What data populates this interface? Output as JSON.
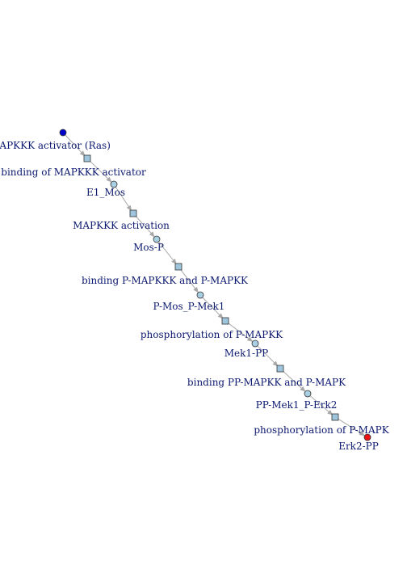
{
  "diagram": {
    "colors": {
      "source_node": "#0000cc",
      "intermediate_node": "#a9cfe3",
      "target_node": "#ee1111",
      "reaction_node": "#9ec5dc",
      "edge": "#a8a8a8",
      "label_text": "#0c1970"
    },
    "nodes": [
      {
        "id": "ras",
        "kind": "species",
        "role": "source",
        "label": "MAPKKK activator (Ras)"
      },
      {
        "id": "r1",
        "kind": "reaction",
        "label": "binding of MAPKKK activator"
      },
      {
        "id": "e1mos",
        "kind": "species",
        "role": "intermediate",
        "label": "E1_Mos"
      },
      {
        "id": "r2",
        "kind": "reaction",
        "label": "MAPKKK activation"
      },
      {
        "id": "mosp",
        "kind": "species",
        "role": "intermediate",
        "label": "Mos-P"
      },
      {
        "id": "r3",
        "kind": "reaction",
        "label": "binding P-MAPKKK and P-MAPKK"
      },
      {
        "id": "mosmek1",
        "kind": "species",
        "role": "intermediate",
        "label": "P-Mos_P-Mek1"
      },
      {
        "id": "r4",
        "kind": "reaction",
        "label": "phosphorylation of P-MAPKK"
      },
      {
        "id": "mek1pp",
        "kind": "species",
        "role": "intermediate",
        "label": "Mek1-PP"
      },
      {
        "id": "r5",
        "kind": "reaction",
        "label": "binding PP-MAPKK and P-MAPK"
      },
      {
        "id": "mek1erk2",
        "kind": "species",
        "role": "intermediate",
        "label": "PP-Mek1_P-Erk2"
      },
      {
        "id": "r6",
        "kind": "reaction",
        "label": "phosphorylation of P-MAPK"
      },
      {
        "id": "erk2pp",
        "kind": "species",
        "role": "target",
        "label": "Erk2-PP"
      }
    ],
    "edges": [
      {
        "from": "ras",
        "to": "r1"
      },
      {
        "from": "r1",
        "to": "e1mos"
      },
      {
        "from": "e1mos",
        "to": "r2"
      },
      {
        "from": "r2",
        "to": "mosp"
      },
      {
        "from": "mosp",
        "to": "r3"
      },
      {
        "from": "r3",
        "to": "mosmek1"
      },
      {
        "from": "mosmek1",
        "to": "r4"
      },
      {
        "from": "r4",
        "to": "mek1pp"
      },
      {
        "from": "mek1pp",
        "to": "r5"
      },
      {
        "from": "r5",
        "to": "mek1erk2"
      },
      {
        "from": "mek1erk2",
        "to": "r6"
      },
      {
        "from": "r6",
        "to": "erk2pp"
      }
    ]
  }
}
